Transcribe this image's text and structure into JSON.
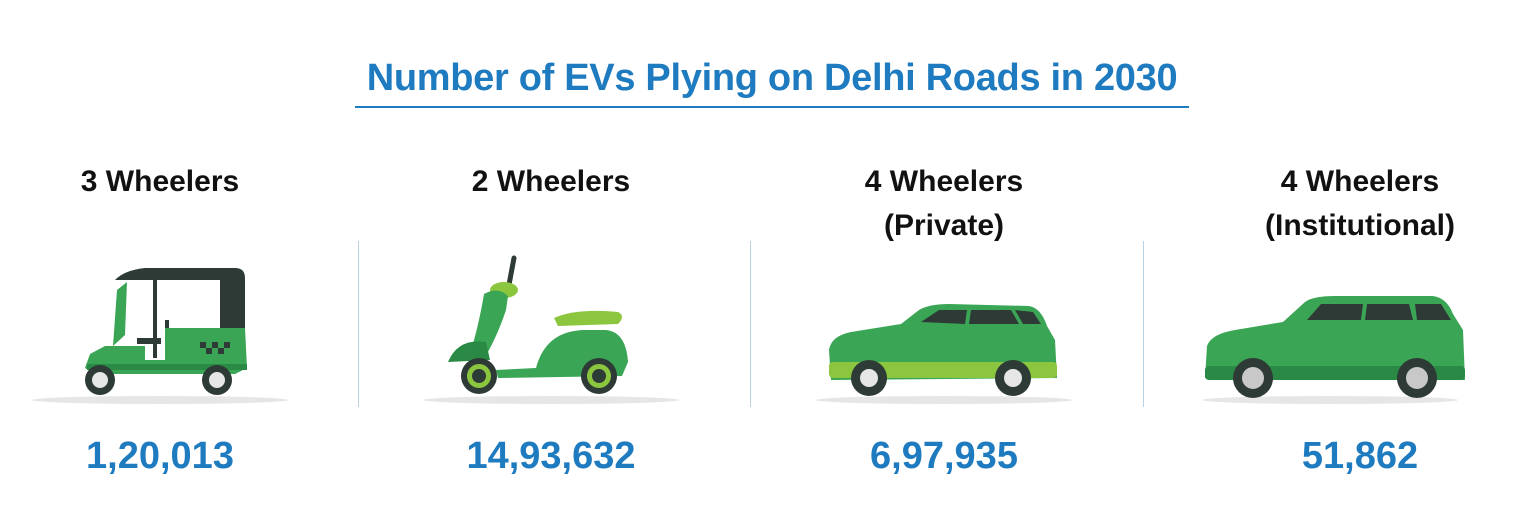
{
  "title": "Number of EVs Plying on Delhi Roads in 2030",
  "categories": [
    {
      "label_line1": "3 Wheelers",
      "label_line2": "",
      "count": "1,20,013",
      "icon": "auto-rickshaw-icon"
    },
    {
      "label_line1": "2 Wheelers",
      "label_line2": "",
      "count": "14,93,632",
      "icon": "scooter-icon"
    },
    {
      "label_line1": "4 Wheelers",
      "label_line2": "(Private)",
      "count": "6,97,935",
      "icon": "hatchback-car-icon"
    },
    {
      "label_line1": "4 Wheelers",
      "label_line2": "(Institutional)",
      "count": "51,862",
      "icon": "suv-car-icon"
    }
  ],
  "colors": {
    "accent": "#1f7bbf",
    "vehicle_green": "#3aa655",
    "vehicle_light_green": "#8cc63f",
    "dark": "#2e3a36"
  }
}
